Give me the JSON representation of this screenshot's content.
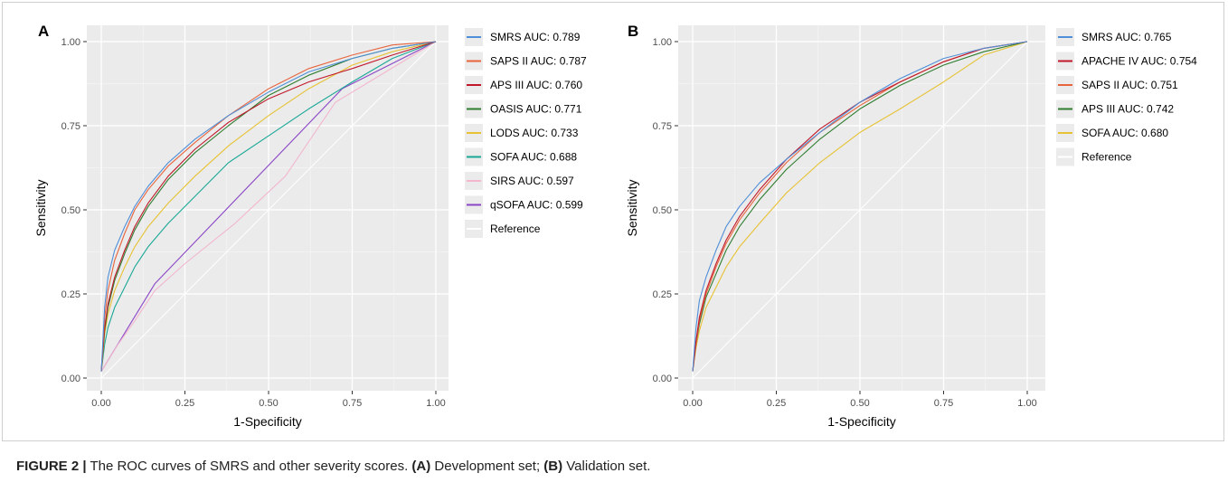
{
  "caption": {
    "prefix": "FIGURE 2 |",
    "text1": " The ROC curves of SMRS and other severity scores. ",
    "a_label": "(A)",
    "text2": " Development set; ",
    "b_label": "(B)",
    "text3": " Validation set."
  },
  "chart_data": [
    {
      "panel_label": "A",
      "type": "line",
      "xlabel": "1-Specificity",
      "ylabel": "Sensitivity",
      "xlim": [
        0,
        1
      ],
      "ylim": [
        0,
        1
      ],
      "x_ticks": [
        "0.00",
        "0.25",
        "0.50",
        "0.75",
        "1.00"
      ],
      "y_ticks": [
        "0.00",
        "0.25",
        "0.50",
        "0.75",
        "1.00"
      ],
      "grid": true,
      "legend_position": "right",
      "series": [
        {
          "name": "SMRS AUC: 0.789",
          "color": "#4f8fd9",
          "x": [
            0,
            0.01,
            0.02,
            0.04,
            0.07,
            0.1,
            0.14,
            0.2,
            0.28,
            0.38,
            0.5,
            0.62,
            0.75,
            0.87,
            1.0
          ],
          "y": [
            0.02,
            0.21,
            0.3,
            0.38,
            0.45,
            0.51,
            0.57,
            0.64,
            0.71,
            0.78,
            0.85,
            0.91,
            0.95,
            0.98,
            1.0
          ]
        },
        {
          "name": "SAPS II AUC: 0.787",
          "color": "#e8643c",
          "x": [
            0,
            0.01,
            0.02,
            0.04,
            0.07,
            0.1,
            0.14,
            0.2,
            0.28,
            0.38,
            0.5,
            0.62,
            0.75,
            0.87,
            1.0
          ],
          "y": [
            0.02,
            0.18,
            0.26,
            0.35,
            0.43,
            0.5,
            0.56,
            0.63,
            0.7,
            0.78,
            0.86,
            0.92,
            0.96,
            0.99,
            1.0
          ]
        },
        {
          "name": "APS III AUC: 0.760",
          "color": "#c0182a",
          "x": [
            0,
            0.01,
            0.02,
            0.04,
            0.07,
            0.1,
            0.14,
            0.2,
            0.28,
            0.38,
            0.5,
            0.62,
            0.75,
            0.87,
            1.0
          ],
          "y": [
            0.02,
            0.15,
            0.22,
            0.3,
            0.38,
            0.45,
            0.52,
            0.6,
            0.68,
            0.76,
            0.83,
            0.88,
            0.92,
            0.96,
            1.0
          ]
        },
        {
          "name": "OASIS AUC: 0.771",
          "color": "#2f7d2f",
          "x": [
            0,
            0.01,
            0.02,
            0.04,
            0.07,
            0.1,
            0.14,
            0.2,
            0.28,
            0.38,
            0.5,
            0.62,
            0.75,
            0.87,
            1.0
          ],
          "y": [
            0.02,
            0.14,
            0.21,
            0.29,
            0.37,
            0.44,
            0.51,
            0.59,
            0.67,
            0.75,
            0.84,
            0.9,
            0.95,
            0.98,
            1.0
          ]
        },
        {
          "name": "LODS AUC: 0.733",
          "color": "#e7c234",
          "x": [
            0,
            0.01,
            0.02,
            0.04,
            0.07,
            0.1,
            0.14,
            0.2,
            0.28,
            0.38,
            0.5,
            0.62,
            0.75,
            0.87,
            1.0
          ],
          "y": [
            0.02,
            0.13,
            0.19,
            0.26,
            0.33,
            0.39,
            0.45,
            0.52,
            0.6,
            0.69,
            0.78,
            0.86,
            0.93,
            0.97,
            1.0
          ]
        },
        {
          "name": "SOFA AUC: 0.688",
          "color": "#1aa896",
          "x": [
            0,
            0.01,
            0.02,
            0.04,
            0.07,
            0.1,
            0.14,
            0.2,
            0.28,
            0.38,
            0.5,
            0.62,
            0.75,
            0.87,
            1.0
          ],
          "y": [
            0.02,
            0.1,
            0.15,
            0.21,
            0.27,
            0.33,
            0.39,
            0.46,
            0.54,
            0.64,
            0.72,
            0.8,
            0.88,
            0.95,
            1.0
          ]
        },
        {
          "name": "SIRS AUC: 0.597",
          "color": "#f2b6cf",
          "x": [
            0,
            0.05,
            0.1,
            0.16,
            0.25,
            0.4,
            0.55,
            0.7,
            0.85,
            1.0
          ],
          "y": [
            0.02,
            0.1,
            0.17,
            0.26,
            0.34,
            0.46,
            0.6,
            0.82,
            0.91,
            1.0
          ]
        },
        {
          "name": "qSOFA AUC: 0.599",
          "color": "#8b46c6",
          "x": [
            0,
            0.16,
            0.72,
            1.0
          ],
          "y": [
            0.02,
            0.28,
            0.86,
            1.0
          ]
        },
        {
          "name": "Reference",
          "color": "#ffffff",
          "x": [
            0,
            1
          ],
          "y": [
            0,
            1
          ]
        }
      ]
    },
    {
      "panel_label": "B",
      "type": "line",
      "xlabel": "1-Specificity",
      "ylabel": "Sensitivity",
      "xlim": [
        0,
        1
      ],
      "ylim": [
        0,
        1
      ],
      "x_ticks": [
        "0.00",
        "0.25",
        "0.50",
        "0.75",
        "1.00"
      ],
      "y_ticks": [
        "0.00",
        "0.25",
        "0.50",
        "0.75",
        "1.00"
      ],
      "grid": true,
      "legend_position": "right",
      "series": [
        {
          "name": "SMRS AUC: 0.765",
          "color": "#4f8fd9",
          "x": [
            0,
            0.01,
            0.02,
            0.04,
            0.07,
            0.1,
            0.14,
            0.2,
            0.28,
            0.38,
            0.5,
            0.62,
            0.75,
            0.87,
            1.0
          ],
          "y": [
            0.02,
            0.15,
            0.23,
            0.3,
            0.38,
            0.45,
            0.51,
            0.58,
            0.65,
            0.73,
            0.82,
            0.89,
            0.95,
            0.98,
            1.0
          ]
        },
        {
          "name": "APACHE IV AUC: 0.754",
          "color": "#c0182a",
          "x": [
            0,
            0.01,
            0.02,
            0.04,
            0.07,
            0.1,
            0.14,
            0.2,
            0.28,
            0.38,
            0.5,
            0.62,
            0.75,
            0.87,
            1.0
          ],
          "y": [
            0.02,
            0.11,
            0.18,
            0.26,
            0.34,
            0.41,
            0.48,
            0.56,
            0.65,
            0.74,
            0.82,
            0.88,
            0.94,
            0.98,
            1.0
          ]
        },
        {
          "name": "SAPS II AUC: 0.751",
          "color": "#e8643c",
          "x": [
            0,
            0.01,
            0.02,
            0.04,
            0.07,
            0.1,
            0.14,
            0.2,
            0.28,
            0.38,
            0.5,
            0.62,
            0.75,
            0.87,
            1.0
          ],
          "y": [
            0.02,
            0.1,
            0.17,
            0.25,
            0.33,
            0.4,
            0.47,
            0.55,
            0.64,
            0.73,
            0.81,
            0.88,
            0.94,
            0.98,
            1.0
          ]
        },
        {
          "name": "APS III AUC: 0.742",
          "color": "#2f7d2f",
          "x": [
            0,
            0.01,
            0.02,
            0.04,
            0.07,
            0.1,
            0.14,
            0.2,
            0.28,
            0.38,
            0.5,
            0.62,
            0.75,
            0.87,
            1.0
          ],
          "y": [
            0.02,
            0.1,
            0.16,
            0.24,
            0.31,
            0.38,
            0.45,
            0.53,
            0.62,
            0.71,
            0.8,
            0.87,
            0.93,
            0.97,
            1.0
          ]
        },
        {
          "name": "SOFA AUC: 0.680",
          "color": "#e7c234",
          "x": [
            0,
            0.01,
            0.02,
            0.04,
            0.07,
            0.1,
            0.14,
            0.2,
            0.28,
            0.38,
            0.5,
            0.62,
            0.75,
            0.87,
            1.0
          ],
          "y": [
            0.02,
            0.09,
            0.14,
            0.21,
            0.27,
            0.33,
            0.39,
            0.46,
            0.55,
            0.64,
            0.73,
            0.8,
            0.88,
            0.96,
            1.0
          ]
        },
        {
          "name": "Reference",
          "color": "#ffffff",
          "x": [
            0,
            1
          ],
          "y": [
            0,
            1
          ]
        }
      ]
    }
  ]
}
